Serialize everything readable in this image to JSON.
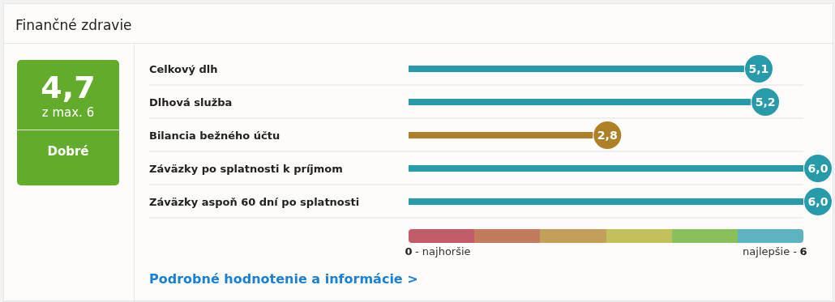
{
  "chart_data": {
    "type": "bar",
    "orientation": "horizontal",
    "title": "Finančné zdravie",
    "categories": [
      "Celkový dlh",
      "Dlhová služba",
      "Bilancia bežného účtu",
      "Záväzky po splatnosti k príjmom",
      "Záväzky aspoň 60 dní po splatnosti"
    ],
    "values": [
      5.1,
      5.2,
      2.8,
      6.0,
      6.0
    ],
    "colors": [
      "#279ba9",
      "#279ba9",
      "#ae8126",
      "#279ba9",
      "#279ba9"
    ],
    "value_labels": [
      "5,1",
      "5,2",
      "2,8",
      "6,0",
      "6,0"
    ],
    "xlim": [
      0,
      6
    ],
    "xticks": [
      0,
      6
    ],
    "grid": "y",
    "annotations": [
      "4,7",
      "z max. 6",
      "Dobré",
      "Podrobné hodnotenie a informácie >",
      "- najhoršie",
      "najlepšie -"
    ]
  }
}
